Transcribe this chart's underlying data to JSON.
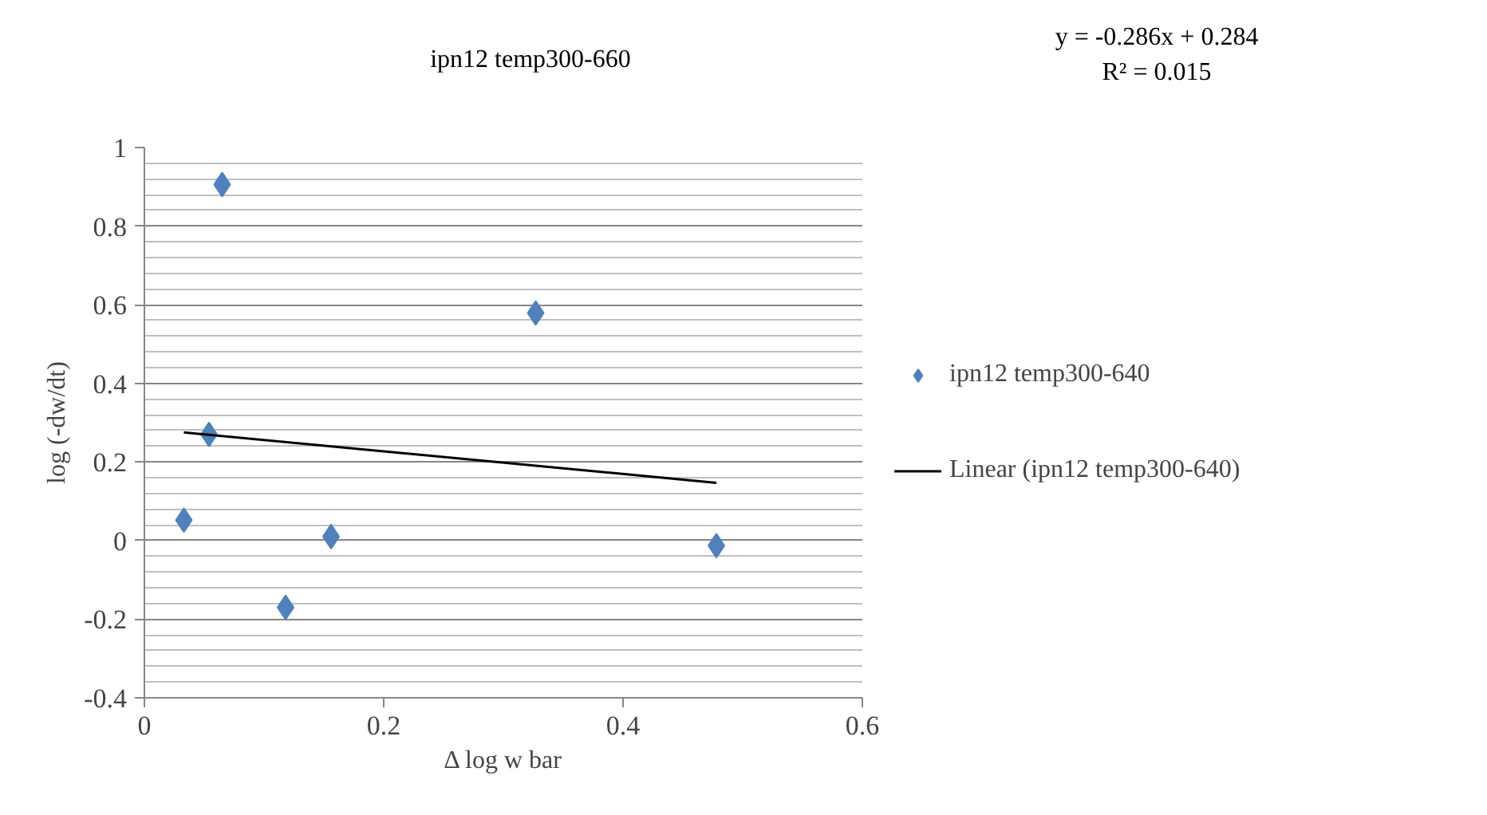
{
  "chart_data": {
    "type": "scatter",
    "title": "ipn12 temp300-660",
    "xlabel": "Δ log w bar",
    "ylabel": "log (-dw/dt)",
    "xlim": [
      0,
      0.6
    ],
    "xticks": [
      0,
      0.2,
      0.4,
      0.6
    ],
    "ylim": [
      -0.4,
      1
    ],
    "yticks": [
      -0.4,
      -0.2,
      0,
      0.2,
      0.4,
      0.6,
      0.8,
      1
    ],
    "grid": "y",
    "legend": "right",
    "annotations": [
      "y = -0.286x + 0.284",
      "R² = 0.015"
    ],
    "series": [
      {
        "name": "ipn12 temp300-640",
        "color": "#4f81bd",
        "marker": "diamond",
        "x": [
          0.033,
          0.054,
          0.065,
          0.118,
          0.156,
          0.327,
          0.478
        ],
        "values": [
          0.052,
          0.27,
          0.906,
          -0.17,
          0.01,
          0.579,
          -0.013
        ]
      },
      {
        "name": "Linear (ipn12 temp300-640)",
        "type": "line",
        "color": "#000000",
        "x": [
          0.033,
          0.478
        ],
        "values": [
          0.275,
          0.147
        ]
      }
    ]
  }
}
